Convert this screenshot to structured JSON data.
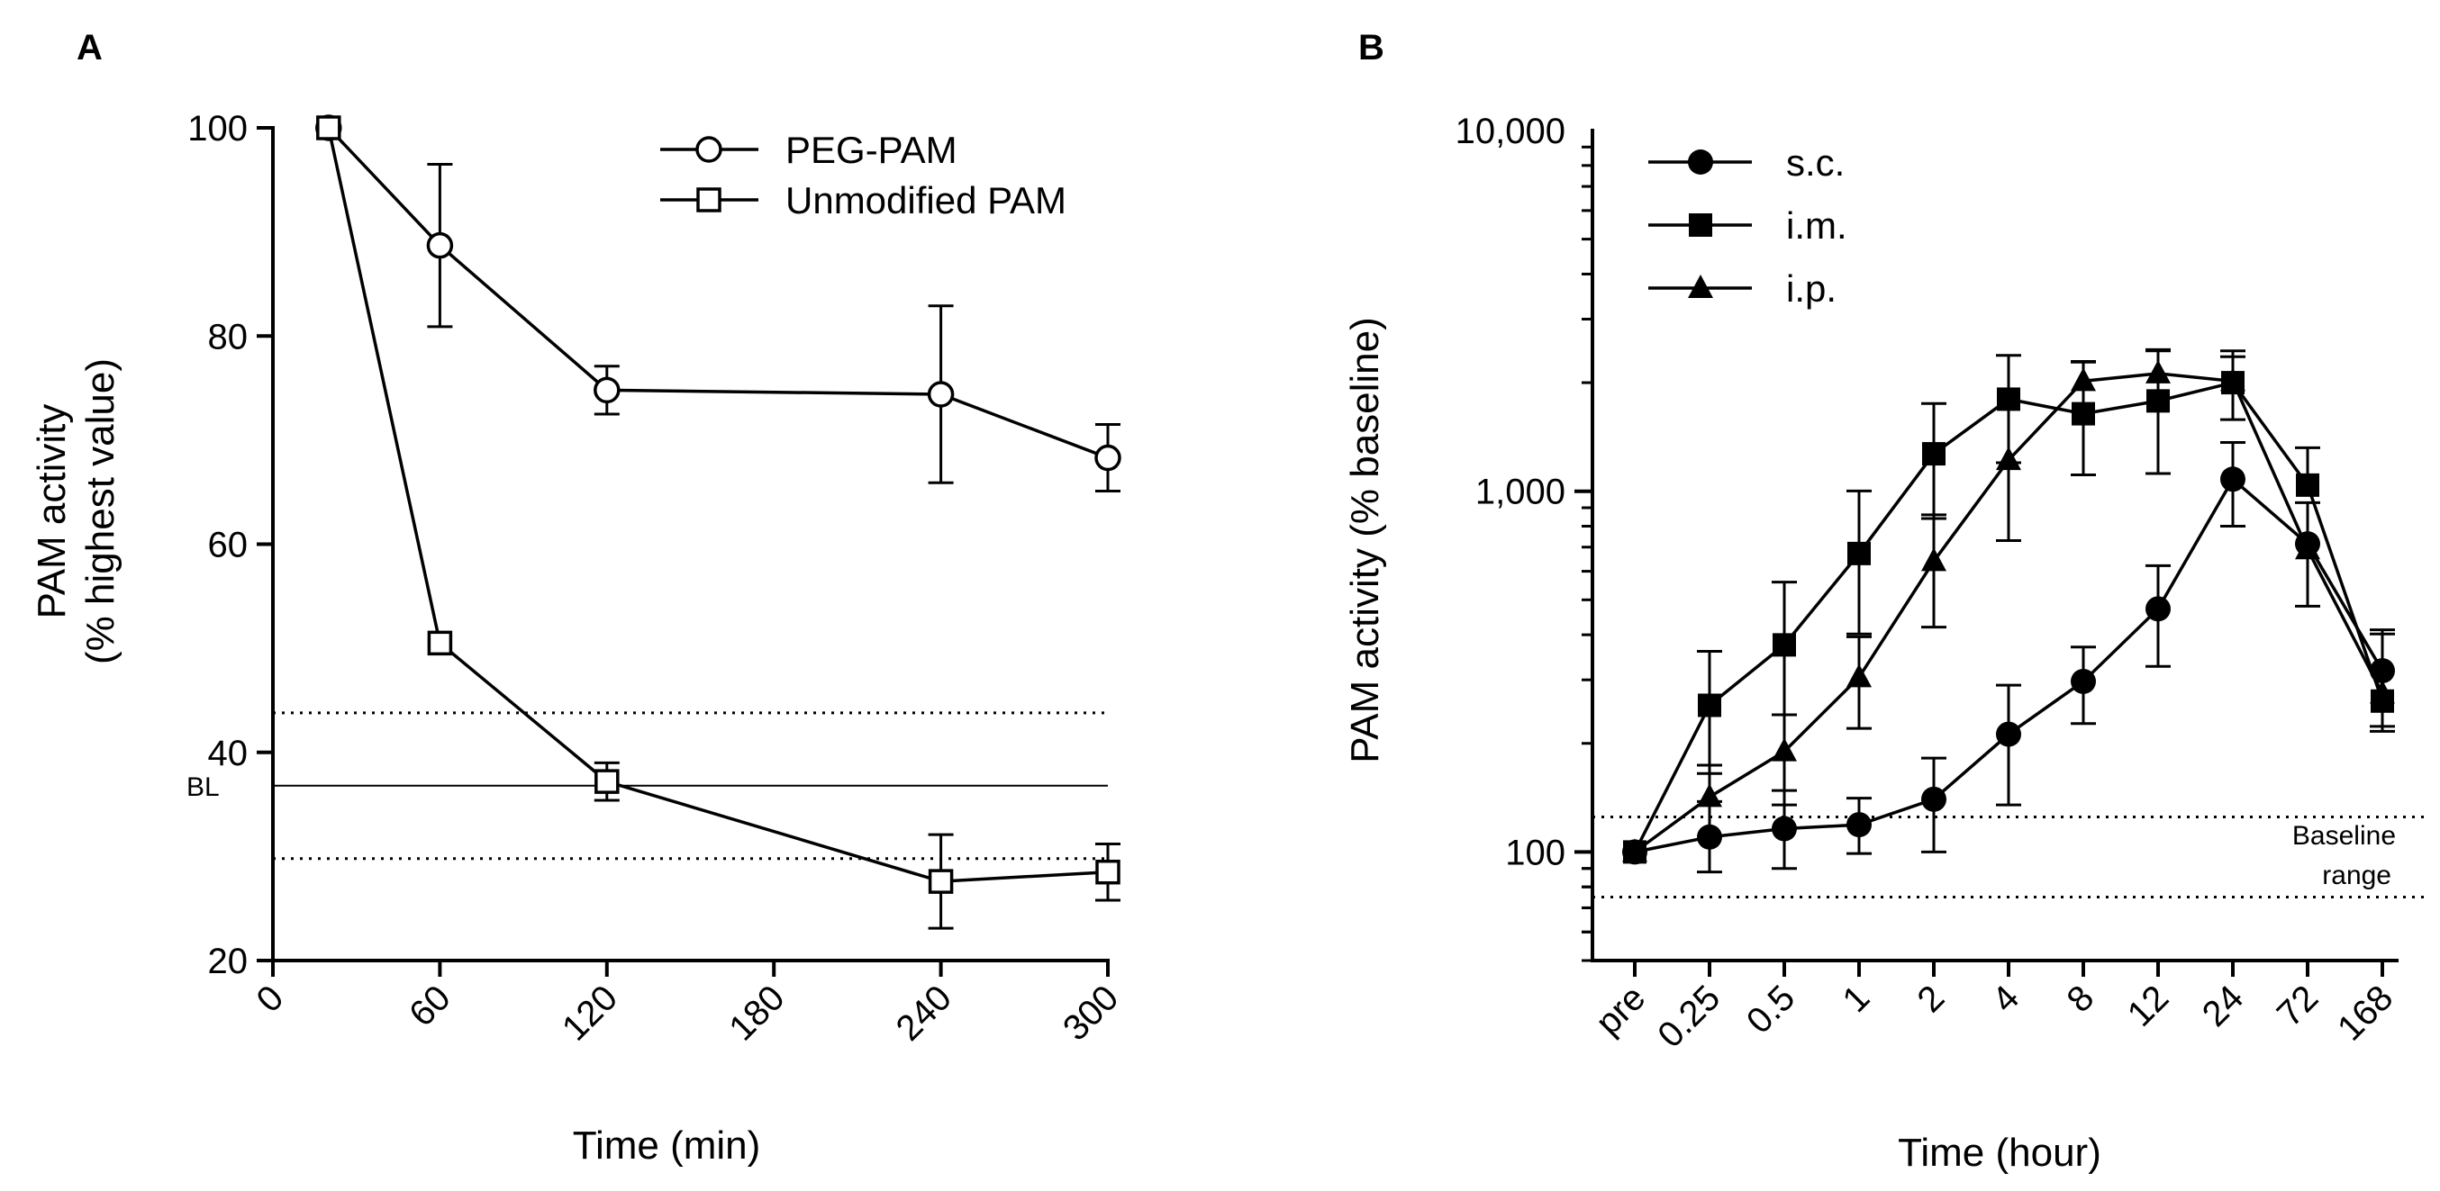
{
  "chart_data": [
    {
      "panel_label": "A",
      "type": "line",
      "xlabel": "Time (min)",
      "ylabel": "PAM activity",
      "ylabel_line2": "(% highest value)",
      "xlim": [
        0,
        300
      ],
      "ylim": [
        20,
        100
      ],
      "xticks": [
        0,
        60,
        120,
        180,
        240,
        300
      ],
      "xtick_labels": [
        "0",
        "60",
        "120",
        "180",
        "240",
        "300"
      ],
      "yticks": [
        20,
        40,
        60,
        80,
        100
      ],
      "ytick_labels": [
        "20",
        "40",
        "60",
        "80",
        "100"
      ],
      "series": [
        {
          "name": "PEG-PAM",
          "marker": "circle-open",
          "x": [
            20,
            60,
            120,
            240,
            300
          ],
          "values": [
            100,
            88.7,
            74.8,
            74.4,
            68.3
          ],
          "errors": [
            0,
            7.8,
            2.3,
            8.5,
            3.2
          ]
        },
        {
          "name": "Unmodified PAM",
          "marker": "square-open",
          "x": [
            20,
            60,
            120,
            240,
            300
          ],
          "values": [
            100,
            50.5,
            37.2,
            27.6,
            28.5
          ],
          "errors": [
            0,
            0,
            1.8,
            4.5,
            2.7
          ]
        }
      ],
      "reference_lines": [
        {
          "label": "BL",
          "value": 36.8,
          "style": "solid"
        },
        {
          "label": "",
          "value": 43.8,
          "style": "dotted"
        },
        {
          "label": "",
          "value": 29.8,
          "style": "dotted"
        }
      ]
    },
    {
      "panel_label": "B",
      "type": "line",
      "xlabel": "Time (hour)",
      "ylabel": "PAM activity (% baseline)",
      "yscale": "log",
      "ylim": [
        50,
        10000
      ],
      "categories": [
        "pre",
        "0.25",
        "0.5",
        "1",
        "2",
        "4",
        "8",
        "12",
        "24",
        "72",
        "168"
      ],
      "yticks": [
        100,
        1000,
        10000
      ],
      "ytick_labels": [
        "100",
        "1,000",
        "10,000"
      ],
      "series": [
        {
          "name": "s.c.",
          "marker": "circle-filled",
          "values": [
            100,
            110,
            116,
            119,
            140,
            212,
            297,
            472,
            1080,
            715,
            318
          ],
          "err_low": [
            0,
            22,
            26,
            20,
            40,
            77,
            70,
            145,
            280,
            0,
            95
          ],
          "err_high": [
            0,
            28,
            32,
            22,
            42,
            78,
            73,
            150,
            285,
            0,
            95
          ]
        },
        {
          "name": "i.m.",
          "marker": "square-filled",
          "values": [
            100,
            255,
            375,
            672,
            1270,
            1800,
            1640,
            1780,
            2000,
            1040,
            262
          ],
          "err_low": [
            0,
            90,
            135,
            270,
            430,
            600,
            530,
            660,
            420,
            0,
            46
          ],
          "err_high": [
            0,
            105,
            185,
            330,
            480,
            580,
            640,
            670,
            450,
            280,
            140
          ]
        },
        {
          "name": "i.p.",
          "marker": "triangle-filled",
          "values": [
            100,
            142,
            190,
            305,
            640,
            1220,
            2020,
            2120,
            2020,
            690,
            275
          ],
          "err_low": [
            0,
            0,
            55,
            85,
            220,
            490,
            0,
            0,
            0,
            210,
            0
          ],
          "err_high": [
            0,
            32,
            50,
            90,
            220,
            0,
            270,
            350,
            340,
            240,
            0
          ]
        }
      ],
      "reference_lines": [
        {
          "label": "",
          "value": 125,
          "style": "dotted"
        },
        {
          "label": "",
          "value": 75,
          "style": "dotted"
        }
      ],
      "annotation_line1": "Baseline",
      "annotation_line2": "range"
    }
  ]
}
